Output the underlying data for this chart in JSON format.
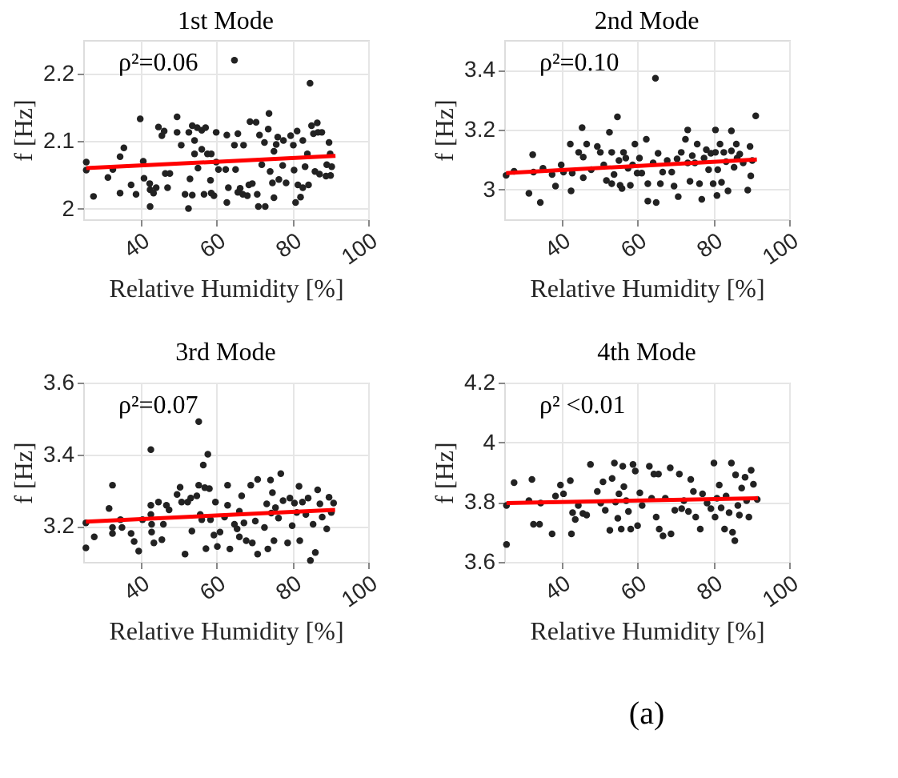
{
  "chart_data": [
    {
      "type": "scatter",
      "title": "1st Mode",
      "xlabel": "Relative Humidity [%]",
      "ylabel": "f [Hz]",
      "xlim": [
        25,
        100
      ],
      "xticks": [
        40,
        60,
        80,
        100
      ],
      "ylim": [
        1.984,
        2.25
      ],
      "yticks": [
        2,
        2.1,
        2.2
      ],
      "grid": true,
      "annotations": [
        "ρ²=0.06"
      ],
      "series": [
        {
          "type": "scatter",
          "color": "#222222",
          "marker": "circle",
          "x": [
            25.8,
            25.8,
            27.7,
            31.5,
            32.8,
            34.7,
            35.7,
            34.7,
            37.6,
            38.9,
            40,
            40.8,
            41,
            42.5,
            42.6,
            42.6,
            43.5,
            44.2,
            44.8,
            45.7,
            46.3,
            46.6,
            47.2,
            47.8,
            49.7,
            49.7,
            50.8,
            51.8,
            52.7,
            52.8,
            53.1,
            53.7,
            53.7,
            54.3,
            54.3,
            55,
            55.2,
            56.2,
            56.2,
            56.8,
            57.2,
            57.7,
            58.5,
            58.7,
            58.7,
            59.4,
            60,
            60,
            60.6,
            62.5,
            62.8,
            62.8,
            63.2,
            64.8,
            64.8,
            65.1,
            65.7,
            65.7,
            66.3,
            67,
            67.2,
            68.2,
            68.6,
            68.9,
            69.5,
            70.5,
            70.8,
            71.1,
            71.4,
            72,
            72.7,
            72.9,
            73.7,
            73.9,
            74.2,
            74.8,
            75.2,
            75.2,
            75.8,
            76.2,
            76.5,
            77.5,
            77.7,
            78.4,
            79.6,
            80.3,
            80.5,
            80.9,
            81.3,
            81.5,
            82.2,
            82.8,
            82.8,
            83.4,
            84,
            84.3,
            84.7,
            85.1,
            85.6,
            86,
            86.6,
            86.8,
            87.2,
            87.8,
            88.9,
            89.1,
            89.7,
            90,
            90.1,
            90.4
          ],
          "values": [
            2.069,
            2.057,
            2.018,
            2.046,
            2.058,
            2.077,
            2.09,
            2.023,
            2.035,
            2.021,
            2.133,
            2.07,
            2.045,
            2.037,
            2.003,
            2.028,
            2.023,
            2.031,
            2.121,
            2.108,
            2.115,
            2.052,
            2.031,
            2.052,
            2.136,
            2.113,
            2.094,
            2.021,
            2.0,
            2.113,
            2.044,
            2.123,
            2.02,
            2.101,
            2.081,
            2.12,
            2.06,
            2.088,
            2.116,
            2.021,
            2.12,
            2.081,
            2.042,
            2.081,
            2.023,
            2.019,
            2.113,
            2.069,
            2.058,
            2.058,
            2.109,
            2.009,
            2.031,
            2.22,
            2.094,
            2.058,
            2.111,
            2.024,
            2.03,
            2.021,
            2.094,
            2.019,
            2.035,
            2.129,
            2.037,
            2.128,
            2.021,
            2.003,
            2.109,
            2.065,
            2.098,
            2.003,
            2.118,
            2.141,
            2.055,
            2.038,
            2.016,
            2.085,
            2.095,
            2.106,
            2.043,
            2.064,
            2.101,
            2.038,
            2.108,
            2.094,
            2.057,
            2.009,
            2.115,
            2.035,
            2.017,
            2.101,
            2.031,
            2.062,
            2.081,
            2.035,
            2.186,
            2.123,
            2.111,
            2.055,
            2.127,
            2.113,
            2.051,
            2.113,
            2.048,
            2.065,
            2.098,
            2.081,
            2.049,
            2.062
          ]
        },
        {
          "type": "line",
          "color": "#ff0000",
          "line_style": "solid",
          "x": [
            25.8,
            91.4
          ],
          "values": [
            2.06,
            2.078
          ]
        }
      ]
    },
    {
      "type": "scatter",
      "title": "2nd Mode",
      "xlabel": "Relative Humidity [%]",
      "ylabel": "f [Hz]",
      "xlim": [
        25,
        100
      ],
      "xticks": [
        40,
        60,
        80,
        100
      ],
      "ylim": [
        2.9,
        3.5
      ],
      "yticks": [
        3,
        3.2,
        3.4
      ],
      "grid": true,
      "annotations": [
        "ρ²=0.10"
      ],
      "series": [
        {
          "type": "scatter",
          "color": "#222222",
          "marker": "circle",
          "x": [
            25.5,
            27.6,
            31.5,
            32.5,
            32.7,
            34.5,
            35.2,
            37.6,
            38.5,
            40,
            40.6,
            42.4,
            42.6,
            42.9,
            44.6,
            45.5,
            45.8,
            45.8,
            46.7,
            47.9,
            49.5,
            50.3,
            51.2,
            51.9,
            52.7,
            53.3,
            53.3,
            53.9,
            54.8,
            55.2,
            55.5,
            56,
            56.4,
            57,
            57.6,
            58.2,
            58.8,
            59.4,
            60,
            60.6,
            61.2,
            62.4,
            62.8,
            62.8,
            64.2,
            64.8,
            65,
            65.5,
            66.1,
            66.7,
            67.9,
            69.1,
            69.7,
            70.5,
            70.8,
            71.6,
            72.7,
            73.3,
            73.3,
            73.9,
            74.5,
            75.2,
            75.8,
            76.4,
            77,
            77.6,
            78.2,
            78.8,
            79.4,
            80,
            80.6,
            80.6,
            81,
            81.2,
            81.8,
            82.2,
            82.8,
            83.4,
            83.9,
            84.8,
            84.8,
            85.5,
            86.1,
            86.3,
            87,
            87.9,
            89.1,
            89.7,
            89.9,
            90.3,
            91.2
          ],
          "values": [
            3.047,
            3.061,
            2.987,
            3.116,
            3.058,
            2.956,
            3.071,
            3.05,
            3.011,
            3.082,
            3.058,
            3.152,
            2.995,
            3.055,
            3.124,
            3.207,
            3.108,
            3.039,
            3.152,
            3.066,
            3.144,
            3.124,
            3.082,
            3.03,
            3.191,
            3.019,
            3.124,
            3.05,
            3.243,
            3.097,
            3.014,
            3.003,
            3.124,
            3.105,
            3.071,
            3.014,
            3.082,
            3.152,
            3.055,
            3.105,
            3.055,
            3.168,
            3.019,
            2.961,
            3.089,
            3.372,
            2.956,
            3.121,
            3.019,
            3.058,
            3.097,
            3.058,
            3.011,
            3.102,
            2.976,
            3.124,
            3.168,
            3.199,
            3.089,
            3.027,
            3.113,
            3.089,
            3.152,
            3.019,
            2.967,
            3.105,
            3.133,
            3.066,
            3.121,
            3.019,
            3.199,
            3.124,
            2.98,
            3.066,
            3.152,
            3.024,
            3.124,
            3.093,
            2.995,
            3.196,
            3.129,
            3.074,
            3.152,
            3.105,
            3.118,
            3.089,
            2.998,
            3.144,
            3.045,
            3.097,
            3.246
          ]
        },
        {
          "type": "line",
          "color": "#ff0000",
          "line_style": "solid",
          "x": [
            25.5,
            91.5
          ],
          "values": [
            3.055,
            3.1
          ]
        }
      ]
    },
    {
      "type": "scatter",
      "title": "3rd Mode",
      "xlabel": "Relative Humidity [%]",
      "ylabel": "f [Hz]",
      "xlim": [
        25,
        100
      ],
      "xticks": [
        40,
        60,
        80,
        100
      ],
      "ylim": [
        3.1,
        3.6
      ],
      "yticks": [
        3.2,
        3.4,
        3.6
      ],
      "grid": true,
      "annotations": [
        "ρ²=0.07"
      ],
      "series": [
        {
          "type": "scatter",
          "color": "#222222",
          "marker": "circle",
          "x": [
            25.7,
            25.7,
            27.9,
            31.8,
            32.7,
            32.7,
            32.7,
            34.8,
            35.2,
            37.6,
            38.4,
            39.6,
            40.6,
            42.8,
            42.8,
            42.8,
            43,
            43,
            43.6,
            44.8,
            45.7,
            46.1,
            46.9,
            47.6,
            49.7,
            50.5,
            50.9,
            51.8,
            52.5,
            53.3,
            53.6,
            54.9,
            55.4,
            55.4,
            55.8,
            56.2,
            56.6,
            57,
            57.3,
            57.8,
            58.2,
            58.5,
            59.4,
            59.8,
            60.3,
            61,
            62.2,
            63,
            63,
            63.6,
            64.8,
            65.5,
            66.1,
            66.1,
            66.7,
            67.3,
            67.9,
            69.1,
            69.5,
            70.3,
            70.9,
            70.9,
            72.7,
            73.3,
            73.6,
            74.3,
            74.5,
            74.8,
            75.2,
            75.6,
            76.4,
            77,
            77.6,
            78.8,
            79.4,
            80,
            80.6,
            81.2,
            81.8,
            82,
            82.7,
            83.6,
            84.2,
            84.8,
            85.5,
            86.1,
            86.7,
            87.3,
            87.9,
            89.1,
            89.7,
            90.3,
            90.9
          ],
          "values": [
            3.209,
            3.139,
            3.17,
            3.249,
            3.314,
            3.196,
            3.179,
            3.218,
            3.196,
            3.179,
            3.157,
            3.13,
            3.218,
            3.413,
            3.258,
            3.232,
            3.205,
            3.183,
            3.153,
            3.267,
            3.162,
            3.205,
            3.258,
            3.245,
            3.288,
            3.308,
            3.267,
            3.122,
            3.267,
            3.278,
            3.186,
            3.284,
            3.491,
            3.314,
            3.232,
            3.218,
            3.37,
            3.307,
            3.137,
            3.4,
            3.304,
            3.218,
            3.175,
            3.267,
            3.143,
            3.183,
            3.225,
            3.314,
            3.258,
            3.136,
            3.205,
            3.192,
            3.241,
            3.17,
            3.284,
            3.209,
            3.159,
            3.314,
            3.153,
            3.214,
            3.33,
            3.122,
            3.196,
            3.262,
            3.136,
            3.328,
            3.236,
            3.293,
            3.159,
            3.251,
            3.222,
            3.346,
            3.271,
            3.153,
            3.278,
            3.201,
            3.264,
            3.238,
            3.311,
            3.159,
            3.267,
            3.232,
            3.278,
            3.104,
            3.205,
            3.126,
            3.301,
            3.262,
            3.225,
            3.192,
            3.28,
            3.238,
            3.264
          ]
        },
        {
          "type": "line",
          "color": "#ff0000",
          "line_style": "solid",
          "x": [
            25.7,
            91.3
          ],
          "values": [
            3.212,
            3.245
          ]
        }
      ]
    },
    {
      "type": "scatter",
      "title": "4th Mode",
      "xlabel": "Relative Humidity [%]",
      "ylabel": "f [Hz]",
      "xlim": [
        25,
        100
      ],
      "xticks": [
        40,
        60,
        80,
        100
      ],
      "ylim": [
        3.6,
        4.2
      ],
      "yticks": [
        3.6,
        3.8,
        4,
        4.2
      ],
      "grid": true,
      "annotations": [
        "ρ² <0.01",
        "(a)"
      ],
      "series": [
        {
          "type": "scatter",
          "color": "#222222",
          "marker": "circle",
          "x": [
            25.6,
            25.6,
            27.6,
            31.5,
            32.3,
            32.7,
            34.3,
            34.6,
            37.6,
            38.5,
            39.8,
            40.6,
            42.4,
            42.7,
            43,
            43.7,
            44.5,
            45.7,
            46.7,
            47.7,
            49.5,
            50.4,
            51,
            51.6,
            52.8,
            53.4,
            54,
            54.3,
            54.9,
            55.2,
            55.8,
            56.2,
            56.5,
            57.1,
            57.7,
            58.3,
            58.9,
            59.5,
            60.1,
            60.7,
            61.3,
            63.2,
            63.8,
            64.4,
            65,
            65.6,
            65.8,
            66.8,
            67.4,
            68.7,
            68.9,
            69.9,
            71.1,
            71.7,
            72.3,
            73.5,
            74.1,
            74.8,
            75.4,
            76.6,
            77.2,
            78.4,
            79.4,
            80.2,
            80.5,
            81,
            81.6,
            82.1,
            83,
            83.4,
            84.2,
            84.8,
            85.1,
            85.7,
            85.9,
            86.5,
            86.9,
            87.5,
            88.4,
            88.8,
            89.4,
            90,
            90.6,
            91.6
          ],
          "values": [
            3.789,
            3.658,
            3.865,
            3.805,
            3.876,
            3.726,
            3.726,
            3.797,
            3.694,
            3.82,
            3.857,
            3.828,
            3.872,
            3.694,
            3.765,
            3.742,
            3.789,
            3.762,
            3.757,
            3.926,
            3.836,
            3.797,
            3.868,
            3.773,
            3.706,
            3.879,
            3.931,
            3.8,
            3.746,
            3.828,
            3.71,
            3.92,
            3.852,
            3.805,
            3.769,
            3.71,
            3.926,
            3.904,
            3.721,
            3.831,
            3.789,
            3.92,
            3.813,
            3.894,
            3.75,
            3.894,
            3.71,
            3.687,
            3.813,
            3.915,
            3.694,
            3.773,
            3.894,
            3.778,
            3.805,
            3.769,
            3.876,
            3.836,
            3.75,
            3.71,
            3.828,
            3.797,
            3.778,
            3.931,
            3.75,
            3.813,
            3.857,
            3.781,
            3.71,
            3.82,
            3.765,
            3.931,
            3.699,
            3.671,
            3.891,
            3.789,
            3.757,
            3.847,
            3.883,
            3.805,
            3.75,
            3.907,
            3.86,
            3.809
          ]
        },
        {
          "type": "line",
          "color": "#ff0000",
          "line_style": "solid",
          "x": [
            25.6,
            91.8
          ],
          "values": [
            3.797,
            3.813
          ]
        }
      ]
    }
  ]
}
